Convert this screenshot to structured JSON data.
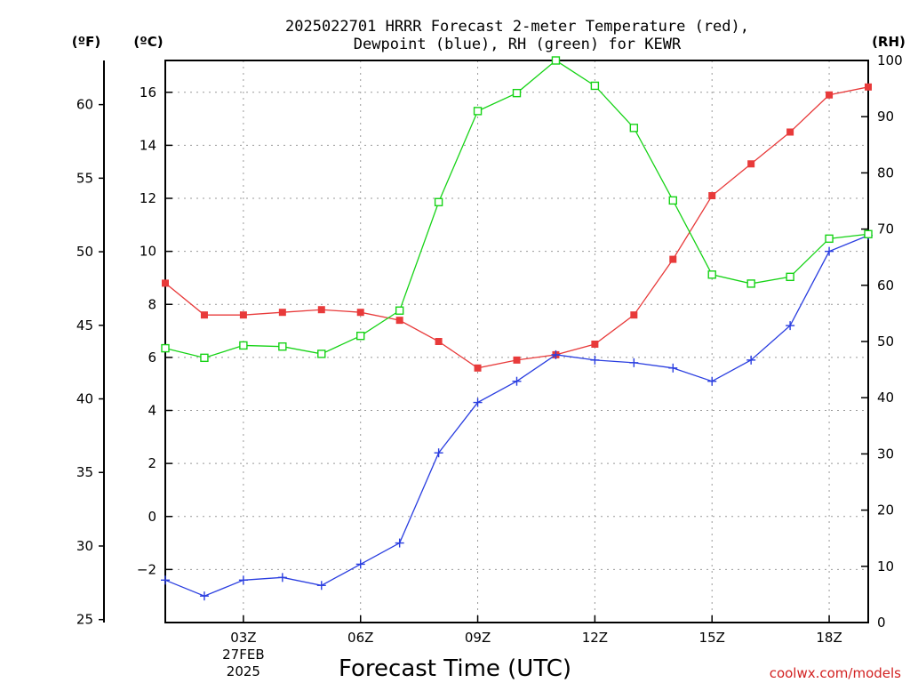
{
  "chart_data": {
    "type": "line",
    "title": [
      "2025022701 HRRR Forecast 2-meter Temperature (red),",
      "Dewpoint (blue), RH (green) for KEWR"
    ],
    "xlabel": "Forecast Time (UTC)",
    "credit": "coolwx.com/models",
    "units": {
      "f": "(ºF)",
      "c": "(ºC)",
      "rh": "(RH)"
    },
    "x_range": [
      1,
      19
    ],
    "x_ticks": [
      {
        "x": 3,
        "label": "03Z",
        "sub": [
          "27FEB",
          "2025"
        ]
      },
      {
        "x": 6,
        "label": "06Z"
      },
      {
        "x": 9,
        "label": "09Z"
      },
      {
        "x": 12,
        "label": "12Z"
      },
      {
        "x": 15,
        "label": "15Z"
      },
      {
        "x": 18,
        "label": "18Z"
      }
    ],
    "axes": {
      "celsius": {
        "range": [
          -4,
          17.2
        ],
        "ticks": [
          "-2",
          "0",
          "2",
          "4",
          "6",
          "8",
          "10",
          "12",
          "14",
          "16"
        ]
      },
      "fahrenheit": {
        "range": [
          24.8,
          63.0
        ],
        "ticks": [
          "25",
          "30",
          "35",
          "40",
          "45",
          "50",
          "55",
          "60"
        ]
      },
      "rh": {
        "range": [
          0,
          100
        ],
        "ticks": [
          "0",
          "10",
          "20",
          "30",
          "40",
          "50",
          "60",
          "70",
          "80",
          "90",
          "100"
        ]
      }
    },
    "grid": true,
    "x": [
      1,
      2,
      3,
      4,
      5,
      6,
      7,
      8,
      9,
      10,
      11,
      12,
      13,
      14,
      15,
      16,
      17,
      18,
      19
    ],
    "series": [
      {
        "axis": "celsius",
        "color": "#e83a3a",
        "marker": "filled-square",
        "values": [
          8.8,
          7.6,
          7.6,
          7.7,
          7.8,
          7.7,
          7.4,
          6.6,
          5.6,
          5.9,
          6.1,
          6.5,
          7.6,
          9.7,
          12.1,
          13.3,
          14.5,
          15.9,
          16.2
        ]
      },
      {
        "axis": "celsius",
        "color": "#2a3ee0",
        "marker": "plus",
        "values": [
          -2.4,
          -3.0,
          -2.4,
          -2.3,
          -2.6,
          -1.8,
          -1.0,
          2.4,
          4.3,
          5.1,
          6.1,
          5.9,
          5.8,
          5.6,
          5.1,
          5.9,
          7.2,
          10.0,
          10.6
        ]
      },
      {
        "axis": "rh",
        "color": "#16d316",
        "marker": "open-square",
        "values": [
          48.8,
          47.1,
          49.3,
          49.1,
          47.8,
          51.0,
          55.5,
          74.8,
          91.0,
          94.2,
          100.0,
          95.5,
          88.0,
          75.1,
          61.9,
          60.3,
          61.5,
          68.3,
          69.1
        ]
      }
    ]
  }
}
